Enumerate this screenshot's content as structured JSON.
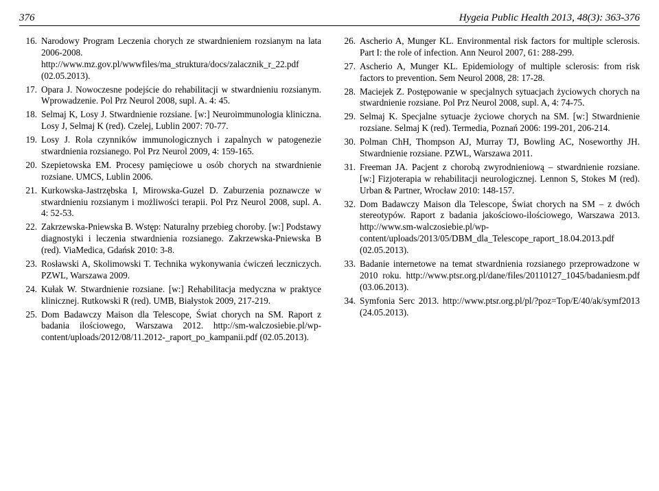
{
  "header": {
    "page_number": "376",
    "journal": "Hygeia Public Health 2013, 48(3): 363-376"
  },
  "left_column": [
    {
      "num": "16.",
      "text": "Narodowy Program Leczenia chorych ze stwardnieniem rozsianym na lata 2006-2008. http://www.mz.gov.pl/wwwfiles/ma_struktura/docs/zalacznik_r_22.pdf (02.05.2013)."
    },
    {
      "num": "17.",
      "text": "Opara J. Nowoczesne podejście do rehabilitacji w stwardnieniu rozsianym. Wprowadzenie. Pol Prz Neurol 2008, supl. A. 4: 45."
    },
    {
      "num": "18.",
      "text": "Selmaj K, Losy J. Stwardnienie rozsiane. [w:] Neuroimmunologia kliniczna. Losy J, Selmaj K (red). Czelej, Lublin 2007: 70-77."
    },
    {
      "num": "19.",
      "text": "Losy J. Rola czynników immunologicznych i zapalnych w patogenezie stwardnienia rozsianego. Pol Prz Neurol 2009, 4: 159-165."
    },
    {
      "num": "20.",
      "text": "Szepietowska EM. Procesy pamięciowe u osób chorych na stwardnienie rozsiane. UMCS, Lublin 2006."
    },
    {
      "num": "21.",
      "text": "Kurkowska-Jastrzębska I, Mirowska-Guzel D. Zaburzenia poznawcze w stwardnieniu rozsianym i możliwości terapii. Pol Prz Neurol 2008, supl. A. 4: 52-53."
    },
    {
      "num": "22.",
      "text": "Zakrzewska-Pniewska B. Wstęp: Naturalny przebieg choroby. [w:] Podstawy diagnostyki i leczenia stwardnienia rozsianego. Zakrzewska-Pniewska B (red). ViaMedica, Gdańsk 2010: 3-8."
    },
    {
      "num": "23.",
      "text": "Rosławski A, Skolimowski T. Technika wykonywania ćwiczeń leczniczych. PZWL, Warszawa 2009."
    },
    {
      "num": "24.",
      "text": "Kułak W. Stwardnienie rozsiane. [w:] Rehabilitacja medyczna w praktyce klinicznej. Rutkowski R (red). UMB, Białystok 2009, 217-219."
    },
    {
      "num": "25.",
      "text": "Dom Badawczy Maison dla Telescope, Świat chorych na SM. Raport z badania ilościowego, Warszawa 2012. http://sm-walczosiebie.pl/wp-content/uploads/2012/08/11.2012-_raport_po_kampanii.pdf (02.05.2013)."
    }
  ],
  "right_column": [
    {
      "num": "26.",
      "text": "Ascherio A, Munger KL. Environmental risk factors for multiple sclerosis. Part I: the role of infection. Ann Neurol 2007, 61: 288-299."
    },
    {
      "num": "27.",
      "text": "Ascherio A, Munger KL. Epidemiology of multiple sclerosis: from risk factors to prevention. Sem Neurol 2008, 28: 17-28."
    },
    {
      "num": "28.",
      "text": "Maciejek Z. Postępowanie w specjalnych sytuacjach życiowych chorych na stwardnienie rozsiane. Pol Prz Neurol 2008, supl. A, 4: 74-75."
    },
    {
      "num": "29.",
      "text": "Selmaj K. Specjalne sytuacje życiowe chorych na SM. [w:] Stwardnienie rozsiane. Selmaj K (red). Termedia, Poznań 2006: 199-201, 206-214."
    },
    {
      "num": "30.",
      "text": "Polman ChH, Thompson AJ, Murray TJ, Bowling AC, Noseworthy JH. Stwardnienie rozsiane. PZWL, Warszawa 2011."
    },
    {
      "num": "31.",
      "text": "Freeman JA. Pacjent z chorobą zwyrodnieniową – stwardnienie rozsiane. [w:] Fizjoterapia w rehabilitacji neurologicznej. Lennon S, Stokes M (red). Urban & Partner, Wrocław 2010: 148-157."
    },
    {
      "num": "32.",
      "text": "Dom Badawczy Maison dla Telescope, Świat chorych na SM – z dwóch stereotypów. Raport z badania jakościowo-ilościowego, Warszawa 2013. http://www.sm-walczosiebie.pl/wp-content/uploads/2013/05/DBM_dla_Telescope_raport_18.04.2013.pdf (02.05.2013)."
    },
    {
      "num": "33.",
      "text": "Badanie internetowe na temat stwardnienia rozsianego przeprowadzone w 2010 roku. http://www.ptsr.org.pl/dane/files/20110127_1045/badaniesm.pdf (03.06.2013)."
    },
    {
      "num": "34.",
      "text": "Symfonia Serc 2013. http://www.ptsr.org.pl/pl/?poz=Top/E/40/ak/symf2013 (24.05.2013)."
    }
  ]
}
